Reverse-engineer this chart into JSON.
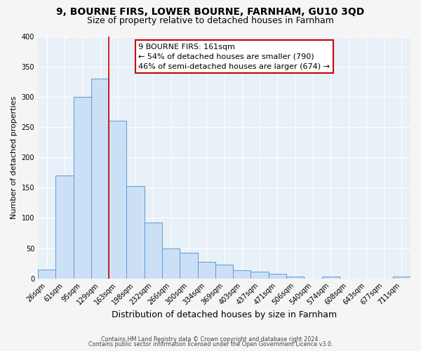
{
  "title": "9, BOURNE FIRS, LOWER BOURNE, FARNHAM, GU10 3QD",
  "subtitle": "Size of property relative to detached houses in Farnham",
  "xlabel": "Distribution of detached houses by size in Farnham",
  "ylabel": "Number of detached properties",
  "footnote1": "Contains HM Land Registry data © Crown copyright and database right 2024.",
  "footnote2": "Contains public sector information licensed under the Open Government Licence v3.0.",
  "bar_labels": [
    "26sqm",
    "61sqm",
    "95sqm",
    "129sqm",
    "163sqm",
    "198sqm",
    "232sqm",
    "266sqm",
    "300sqm",
    "334sqm",
    "369sqm",
    "403sqm",
    "437sqm",
    "471sqm",
    "506sqm",
    "540sqm",
    "574sqm",
    "608sqm",
    "643sqm",
    "677sqm",
    "711sqm"
  ],
  "bar_values": [
    15,
    170,
    300,
    330,
    260,
    153,
    92,
    50,
    43,
    27,
    23,
    13,
    11,
    8,
    3,
    0,
    3,
    0,
    0,
    0,
    3
  ],
  "bar_color": "#cce0f5",
  "bar_edge_color": "#5B9BD5",
  "vline_x": 3.5,
  "vline_color": "#cc0000",
  "annotation_text": "9 BOURNE FIRS: 161sqm\n← 54% of detached houses are smaller (790)\n46% of semi-detached houses are larger (674) →",
  "annotation_box_facecolor": "#ffffff",
  "annotation_box_edgecolor": "#cc0000",
  "ylim": [
    0,
    400
  ],
  "yticks": [
    0,
    50,
    100,
    150,
    200,
    250,
    300,
    350,
    400
  ],
  "plot_bg_color": "#e8f0f8",
  "grid_color": "#ffffff",
  "fig_bg_color": "#f5f5f5",
  "title_fontsize": 10,
  "subtitle_fontsize": 9,
  "tick_fontsize": 7,
  "ylabel_fontsize": 8,
  "xlabel_fontsize": 9,
  "annot_fontsize": 8
}
